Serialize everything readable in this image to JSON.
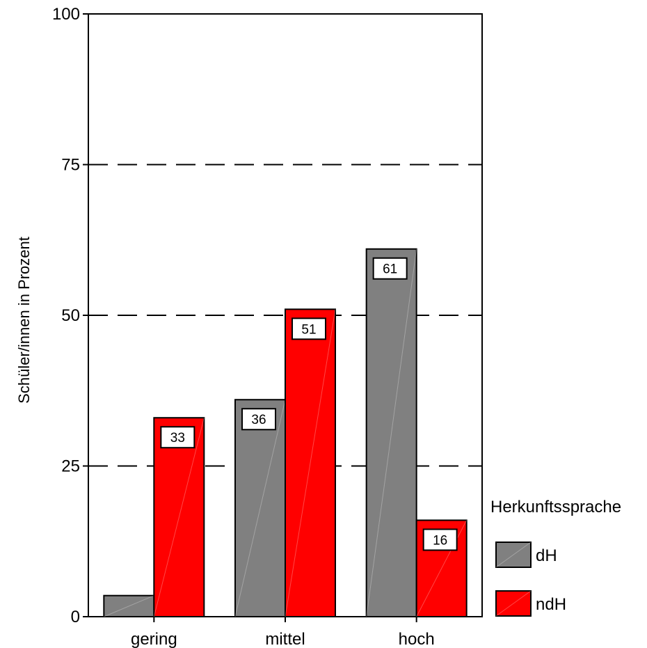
{
  "chart_data": {
    "type": "bar",
    "title": "",
    "xlabel": "",
    "ylabel": "Schüler/innen in Prozent",
    "ylim": [
      0,
      100
    ],
    "yticks": [
      0,
      25,
      50,
      75,
      100
    ],
    "grid": "dashed horizontal lines at 25, 50, 75",
    "categories": [
      "gering",
      "mittel",
      "hoch"
    ],
    "series": [
      {
        "name": "dH",
        "color": "#808080",
        "values": [
          3.5,
          36,
          61
        ],
        "labels": [
          "",
          "36",
          "61"
        ]
      },
      {
        "name": "ndH",
        "color": "#ff0000",
        "values": [
          33,
          51,
          16
        ],
        "labels": [
          "33",
          "51",
          "16"
        ]
      }
    ],
    "legend": {
      "title": "Herkunftssprache",
      "placement": "right-bottom",
      "items": [
        "dH",
        "ndH"
      ]
    }
  }
}
